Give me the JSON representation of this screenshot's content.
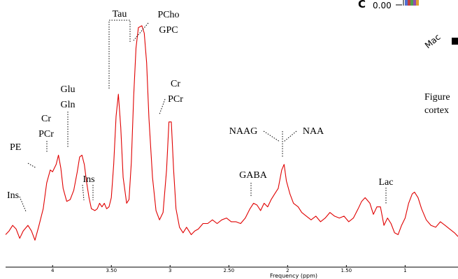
{
  "chart_data": {
    "type": "line",
    "xlabel": "Frequency (ppm)",
    "ylabel": "",
    "xlim": [
      4.4,
      0.55
    ],
    "x_reversed": true,
    "grid": false,
    "series_color": "#e00000",
    "x_ticks": [
      {
        "value": 4,
        "label": "4"
      },
      {
        "value": 3.5,
        "label": "3.50"
      },
      {
        "value": 3,
        "label": "3"
      },
      {
        "value": 2.5,
        "label": "2.50"
      },
      {
        "value": 2,
        "label": "2"
      },
      {
        "value": 1.5,
        "label": "1.50"
      },
      {
        "value": 1,
        "label": "1"
      }
    ],
    "series": [
      {
        "points": [
          [
            4.4,
            0.24
          ],
          [
            4.37,
            0.26
          ],
          [
            4.34,
            0.29
          ],
          [
            4.31,
            0.27
          ],
          [
            4.28,
            0.22
          ],
          [
            4.25,
            0.26
          ],
          [
            4.21,
            0.29
          ],
          [
            4.18,
            0.26
          ],
          [
            4.15,
            0.21
          ],
          [
            4.12,
            0.28
          ],
          [
            4.08,
            0.38
          ],
          [
            4.05,
            0.52
          ],
          [
            4.02,
            0.59
          ],
          [
            4.0,
            0.58
          ],
          [
            3.97,
            0.62
          ],
          [
            3.95,
            0.67
          ],
          [
            3.93,
            0.6
          ],
          [
            3.91,
            0.49
          ],
          [
            3.88,
            0.42
          ],
          [
            3.85,
            0.43
          ],
          [
            3.82,
            0.48
          ],
          [
            3.79,
            0.58
          ],
          [
            3.77,
            0.66
          ],
          [
            3.75,
            0.67
          ],
          [
            3.73,
            0.62
          ],
          [
            3.71,
            0.52
          ],
          [
            3.69,
            0.44
          ],
          [
            3.67,
            0.38
          ],
          [
            3.64,
            0.37
          ],
          [
            3.62,
            0.38
          ],
          [
            3.6,
            0.41
          ],
          [
            3.58,
            0.39
          ],
          [
            3.56,
            0.41
          ],
          [
            3.54,
            0.38
          ],
          [
            3.52,
            0.39
          ],
          [
            3.5,
            0.44
          ],
          [
            3.48,
            0.62
          ],
          [
            3.46,
            0.88
          ],
          [
            3.44,
            1.0
          ],
          [
            3.42,
            0.82
          ],
          [
            3.4,
            0.55
          ],
          [
            3.37,
            0.41
          ],
          [
            3.35,
            0.43
          ],
          [
            3.33,
            0.63
          ],
          [
            3.31,
            0.99
          ],
          [
            3.29,
            1.25
          ],
          [
            3.27,
            1.36
          ],
          [
            3.24,
            1.37
          ],
          [
            3.22,
            1.33
          ],
          [
            3.2,
            1.17
          ],
          [
            3.18,
            0.87
          ],
          [
            3.15,
            0.55
          ],
          [
            3.12,
            0.37
          ],
          [
            3.09,
            0.32
          ],
          [
            3.06,
            0.36
          ],
          [
            3.03,
            0.59
          ],
          [
            3.01,
            0.85
          ],
          [
            2.99,
            0.85
          ],
          [
            2.97,
            0.59
          ],
          [
            2.95,
            0.38
          ],
          [
            2.92,
            0.28
          ],
          [
            2.89,
            0.25
          ],
          [
            2.86,
            0.28
          ],
          [
            2.82,
            0.24
          ],
          [
            2.79,
            0.26
          ],
          [
            2.76,
            0.27
          ],
          [
            2.72,
            0.3
          ],
          [
            2.68,
            0.3
          ],
          [
            2.64,
            0.32
          ],
          [
            2.6,
            0.3
          ],
          [
            2.56,
            0.32
          ],
          [
            2.52,
            0.33
          ],
          [
            2.48,
            0.31
          ],
          [
            2.44,
            0.31
          ],
          [
            2.4,
            0.3
          ],
          [
            2.36,
            0.33
          ],
          [
            2.32,
            0.38
          ],
          [
            2.29,
            0.41
          ],
          [
            2.26,
            0.4
          ],
          [
            2.23,
            0.37
          ],
          [
            2.2,
            0.41
          ],
          [
            2.17,
            0.39
          ],
          [
            2.14,
            0.43
          ],
          [
            2.11,
            0.46
          ],
          [
            2.08,
            0.49
          ],
          [
            2.05,
            0.59
          ],
          [
            2.03,
            0.62
          ],
          [
            2.01,
            0.53
          ],
          [
            1.98,
            0.46
          ],
          [
            1.95,
            0.41
          ],
          [
            1.91,
            0.39
          ],
          [
            1.88,
            0.36
          ],
          [
            1.84,
            0.34
          ],
          [
            1.8,
            0.32
          ],
          [
            1.76,
            0.34
          ],
          [
            1.72,
            0.31
          ],
          [
            1.68,
            0.33
          ],
          [
            1.64,
            0.36
          ],
          [
            1.6,
            0.34
          ],
          [
            1.56,
            0.33
          ],
          [
            1.52,
            0.34
          ],
          [
            1.48,
            0.31
          ],
          [
            1.44,
            0.33
          ],
          [
            1.4,
            0.38
          ],
          [
            1.37,
            0.42
          ],
          [
            1.34,
            0.44
          ],
          [
            1.3,
            0.41
          ],
          [
            1.27,
            0.35
          ],
          [
            1.24,
            0.39
          ],
          [
            1.21,
            0.39
          ],
          [
            1.18,
            0.29
          ],
          [
            1.15,
            0.33
          ],
          [
            1.12,
            0.3
          ],
          [
            1.09,
            0.25
          ],
          [
            1.06,
            0.24
          ],
          [
            1.03,
            0.29
          ],
          [
            1.0,
            0.33
          ],
          [
            0.97,
            0.41
          ],
          [
            0.94,
            0.46
          ],
          [
            0.92,
            0.47
          ],
          [
            0.89,
            0.44
          ],
          [
            0.86,
            0.38
          ],
          [
            0.82,
            0.32
          ],
          [
            0.78,
            0.29
          ],
          [
            0.74,
            0.28
          ],
          [
            0.7,
            0.31
          ],
          [
            0.66,
            0.29
          ],
          [
            0.62,
            0.27
          ],
          [
            0.58,
            0.25
          ],
          [
            0.55,
            0.23
          ]
        ]
      }
    ],
    "annotations": [
      {
        "lines": [
          "Ins"
        ]
      },
      {
        "lines": [
          "PE"
        ]
      },
      {
        "lines": [
          "Cr",
          "PCr"
        ]
      },
      {
        "lines": [
          "Glu",
          "Gln"
        ]
      },
      {
        "lines": [
          "Ins"
        ]
      },
      {
        "lines": [
          "Tau"
        ]
      },
      {
        "lines": [
          "PCho",
          "GPC"
        ]
      },
      {
        "lines": [
          "Cr",
          "PCr"
        ]
      },
      {
        "lines": [
          "NAAG"
        ]
      },
      {
        "lines": [
          "NAA"
        ]
      },
      {
        "lines": [
          "GABA"
        ]
      },
      {
        "lines": [
          "Lac"
        ]
      }
    ]
  },
  "cropped_inset": {
    "axis_value": "0.00",
    "partial_glyph": "C",
    "rotated_label": "Mac",
    "caption_lines": [
      "Figure",
      "cortex"
    ],
    "bar_colors": [
      "#4f6fd0",
      "#c04040",
      "#50a050",
      "#9050b0",
      "#e0a030"
    ]
  }
}
